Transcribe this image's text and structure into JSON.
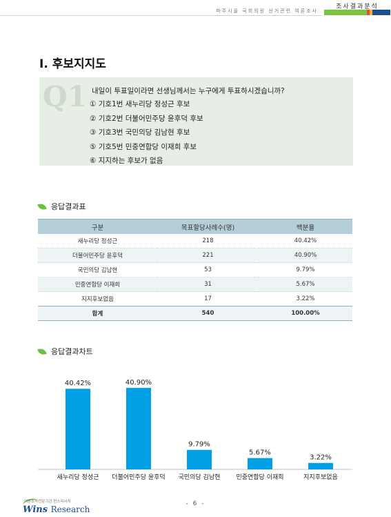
{
  "header": {
    "subtitle": "파주시을 국회의원 선거관련 여론조사",
    "tag": "조사결과분석",
    "accent_colors": [
      "#7cc243",
      "#e84b3c",
      "#f2b632",
      "#1f4e8f"
    ]
  },
  "section_title": "Ⅰ. 후보지지도",
  "question": {
    "mark": "Q1",
    "text": "내일이 투표일이라면 선생님께서는 누구에게 투표하시겠습니까?",
    "options": [
      "① 기호1번 새누리당 정성근 후보",
      "② 기호2번 더불어민주당 윤후덕 후보",
      "③ 기호3번 국민의당 김남현 후보",
      "⑤ 기호5번 민중연합당 이재희 후보",
      "⑥ 지지하는 후보가 없음"
    ]
  },
  "table_section": {
    "heading": "응답결과표",
    "columns": [
      "구분",
      "목표할당사례수(명)",
      "백분율"
    ],
    "rows": [
      [
        "새누리당 정성근",
        "218",
        "40.42%"
      ],
      [
        "더불어민주당 윤후덕",
        "221",
        "40.90%"
      ],
      [
        "국민의당 김남현",
        "53",
        "9.79%"
      ],
      [
        "민중연합당 이재희",
        "31",
        "5.67%"
      ],
      [
        "지지후보없음",
        "17",
        "3.22%"
      ]
    ],
    "total": [
      "합계",
      "540",
      "100.00%"
    ]
  },
  "chart_section": {
    "heading": "응답결과차트"
  },
  "chart_data": {
    "type": "bar",
    "categories": [
      "새누리당 정성근",
      "더불어민주당 윤후덕",
      "국민의당 김남현",
      "민중연합당 이재희",
      "지지후보없음"
    ],
    "values": [
      40.42,
      40.9,
      9.79,
      5.67,
      3.22
    ],
    "value_labels": [
      "40.42%",
      "40.90%",
      "9.79%",
      "5.67%",
      "3.22%"
    ],
    "ylim": [
      0,
      45
    ],
    "grid": false,
    "bar_color": "#00a0e4"
  },
  "footer": {
    "page": "- 6 -",
    "org_small": "여론조사전문기관 윈스리서치",
    "logo": "Wins",
    "logo_suffix": "Research"
  }
}
